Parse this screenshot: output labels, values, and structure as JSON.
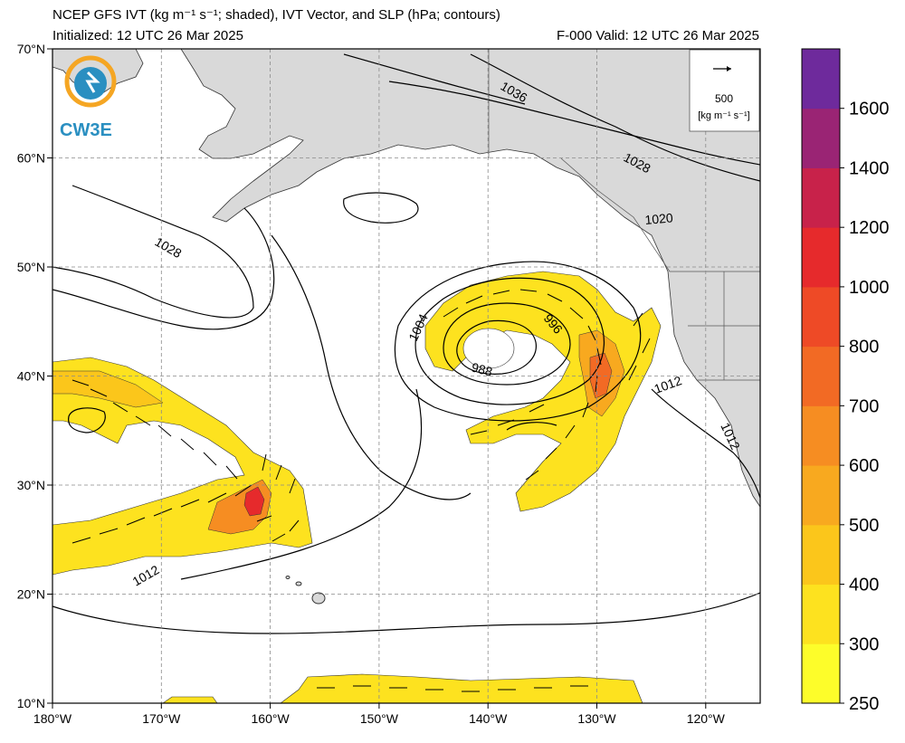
{
  "header": {
    "title": "NCEP GFS IVT (kg m⁻¹ s⁻¹; shaded), IVT Vector, and SLP (hPa; contours)",
    "initialized": "Initialized: 12 UTC 26 Mar 2025",
    "valid": "F-000  Valid: 12 UTC 26 Mar 2025"
  },
  "logo": {
    "text": "CW3E",
    "icon": "cw3e-logo-icon"
  },
  "reference_vector": {
    "value": "500",
    "units": "[kg m⁻¹ s⁻¹]"
  },
  "axes": {
    "lat_ticks": [
      "70°N",
      "60°N",
      "50°N",
      "40°N",
      "30°N",
      "20°N",
      "10°N"
    ],
    "lon_ticks": [
      "180°W",
      "170°W",
      "160°W",
      "150°W",
      "140°W",
      "130°W",
      "120°W"
    ],
    "lat_range": [
      10,
      70
    ],
    "lon_range": [
      -180,
      -115
    ]
  },
  "colorbar": {
    "ticks": [
      "250",
      "300",
      "400",
      "500",
      "600",
      "700",
      "800",
      "1000",
      "1200",
      "1400",
      "1600"
    ],
    "colors": [
      "#fdfd2a",
      "#fde21f",
      "#fbc61b",
      "#f8a91f",
      "#f68d22",
      "#f26a24",
      "#ee4a26",
      "#e62a2c",
      "#c8224a",
      "#9a2474",
      "#6e2a9c"
    ]
  },
  "slp_contour_labels": [
    "1036",
    "1028",
    "1020",
    "1028",
    "1004",
    "996",
    "988",
    "1012",
    "1012",
    "1012"
  ],
  "colors": {
    "land": "#d9d9d9",
    "ocean": "#ffffff",
    "grid": "#8a8a8a",
    "contour": "#000000"
  }
}
